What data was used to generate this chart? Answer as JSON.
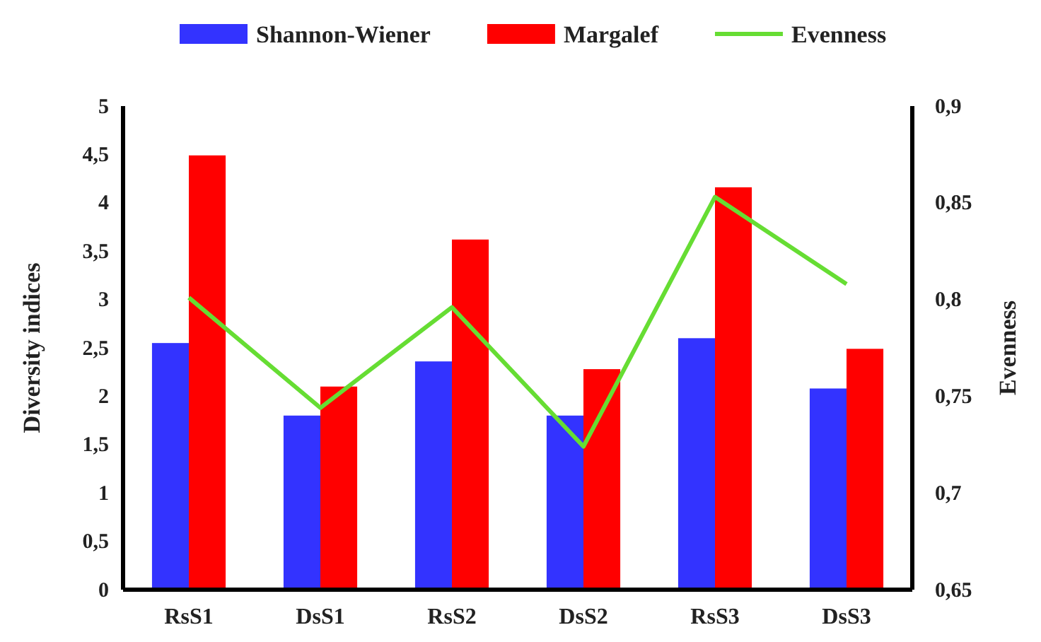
{
  "chart_data": {
    "type": "bar",
    "categories": [
      "RsS1",
      "DsS1",
      "RsS2",
      "DsS2",
      "RsS3",
      "DsS3"
    ],
    "series": [
      {
        "name": "Shannon-Wiener",
        "color": "#3333ff",
        "values": [
          2.55,
          1.8,
          2.36,
          1.8,
          2.6,
          2.08
        ]
      },
      {
        "name": "Margalef",
        "color": "#ff0000",
        "values": [
          4.49,
          2.1,
          3.62,
          2.28,
          4.16,
          2.49
        ]
      },
      {
        "name": "Evenness",
        "type": "line",
        "axis": "y2",
        "color": "#66dd33",
        "values": [
          0.801,
          0.744,
          0.796,
          0.724,
          0.853,
          0.808
        ]
      }
    ],
    "ylabel": "Diversity indices",
    "y2label": "Evenness",
    "ylim": [
      0,
      5
    ],
    "yticks": [
      0,
      {
        "value": 0.5,
        "label": "0,5"
      },
      1,
      {
        "value": 1.5,
        "label": "1,5"
      },
      2,
      {
        "value": 2.5,
        "label": "2,5"
      },
      3,
      {
        "value": 3.5,
        "label": "3,5"
      },
      4,
      {
        "value": 4.5,
        "label": "4,5"
      },
      5
    ],
    "y2lim": [
      0.65,
      0.9
    ],
    "y2ticks": [
      {
        "value": 0.65,
        "label": "0,65"
      },
      {
        "value": 0.7,
        "label": "0,7"
      },
      {
        "value": 0.75,
        "label": "0,75"
      },
      {
        "value": 0.8,
        "label": "0,8"
      },
      {
        "value": 0.85,
        "label": "0,85"
      },
      {
        "value": 0.9,
        "label": "0,9"
      }
    ],
    "legend": "top",
    "grid": false,
    "marker": "none",
    "line_style": "solid"
  }
}
